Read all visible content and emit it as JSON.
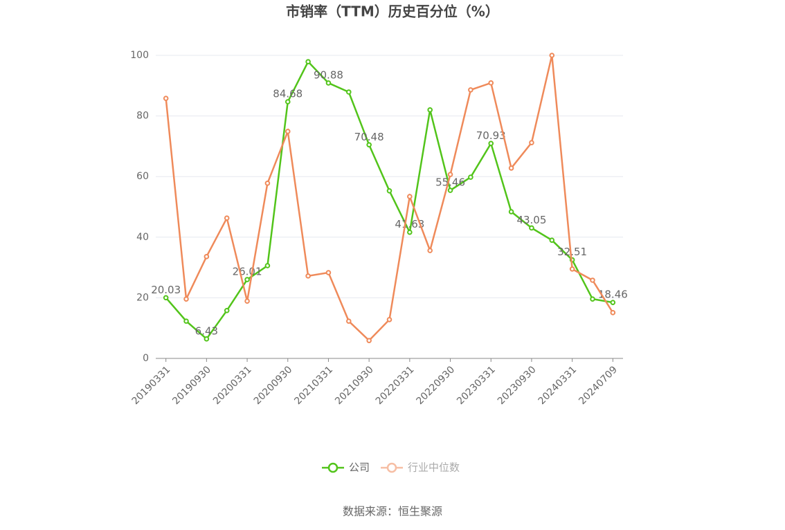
{
  "chart_data": {
    "type": "line",
    "title": "市销率（TTM）历史百分位（%）",
    "categories": [
      "20190331",
      null,
      "20190930",
      null,
      "20200331",
      null,
      "20200930",
      null,
      "20210331",
      null,
      "20210930",
      null,
      "20220331",
      null,
      "20220930",
      null,
      "20230331",
      null,
      "20230930",
      null,
      "20240331",
      null,
      "20240709"
    ],
    "series": [
      {
        "name": "公司",
        "color": "#52c41a",
        "values": [
          20.03,
          12.3,
          6.43,
          15.8,
          26.01,
          30.6,
          84.68,
          97.9,
          90.88,
          87.9,
          70.48,
          55.3,
          41.63,
          82.0,
          55.46,
          59.8,
          70.93,
          48.4,
          43.05,
          39.0,
          32.51,
          19.6,
          18.46
        ],
        "value_labels": [
          "20.03",
          null,
          "6.43",
          null,
          "26.01",
          null,
          "84.68",
          null,
          "90.88",
          null,
          "70.48",
          null,
          "41.63",
          null,
          "55.46",
          null,
          "70.93",
          null,
          "43.05",
          null,
          "32.51",
          null,
          "18.46"
        ]
      },
      {
        "name": "行业中位数",
        "color": "#ef8a5a",
        "values": [
          85.8,
          19.6,
          33.6,
          46.3,
          18.9,
          57.8,
          74.9,
          27.2,
          28.3,
          12.3,
          5.9,
          12.8,
          53.4,
          35.6,
          60.7,
          88.6,
          90.9,
          62.8,
          71.2,
          100,
          29.5,
          25.8,
          15.1
        ]
      }
    ],
    "ylim": [
      0,
      100
    ],
    "yticks": [
      0,
      20,
      40,
      60,
      80,
      100
    ],
    "grid": true,
    "source": "数据来源：恒生聚源"
  }
}
